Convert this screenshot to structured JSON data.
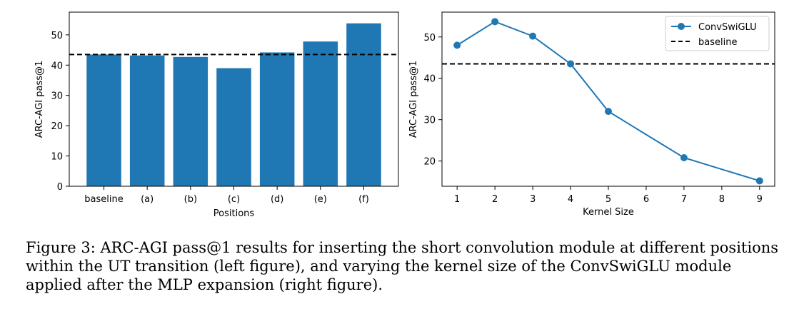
{
  "chart_data": [
    {
      "type": "bar",
      "title": "",
      "xlabel": "Positions",
      "ylabel": "ARC-AGI pass@1",
      "categories": [
        "baseline",
        "(a)",
        "(b)",
        "(c)",
        "(d)",
        "(e)",
        "(f)"
      ],
      "values": [
        43.5,
        43.2,
        42.7,
        39.0,
        44.2,
        47.8,
        53.8
      ],
      "ylim": [
        0,
        57.5
      ],
      "yticks": [
        0,
        10,
        20,
        30,
        40,
        50
      ],
      "baseline_value": 43.5,
      "color": "#1f77b4"
    },
    {
      "type": "line",
      "title": "",
      "xlabel": "Kernel Size",
      "ylabel": "ARC-AGI pass@1",
      "x": [
        1,
        2,
        3,
        4,
        5,
        7,
        9
      ],
      "series": [
        {
          "name": "ConvSwiGLU",
          "values": [
            48.0,
            53.7,
            50.2,
            43.5,
            32.0,
            20.8,
            15.2
          ],
          "color": "#1f77b4"
        }
      ],
      "xlim": [
        0.6,
        9.4
      ],
      "ylim": [
        13.9,
        56.0
      ],
      "xticks": [
        1,
        2,
        3,
        4,
        5,
        6,
        7,
        8,
        9
      ],
      "yticks": [
        20,
        30,
        40,
        50
      ],
      "baseline_value": 43.5,
      "legend": {
        "position": "top-right",
        "entries": [
          "ConvSwiGLU",
          "baseline"
        ]
      }
    }
  ],
  "caption": "Figure 3: ARC-AGI pass@1 results for inserting the short convolution module at different positions within the UT transition (left figure), and varying the kernel size of the ConvSwiGLU module applied after the MLP expansion (right figure)."
}
